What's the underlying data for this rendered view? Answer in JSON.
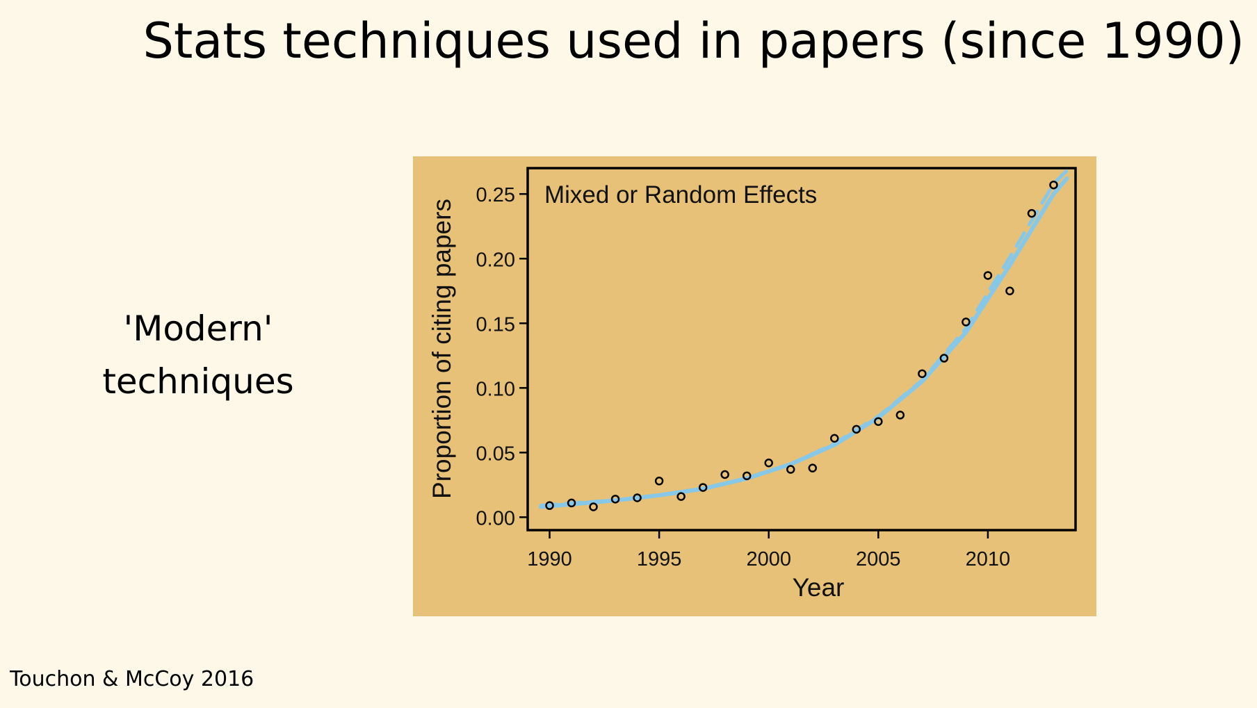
{
  "slide": {
    "title": "Stats techniques used in papers (since 1990)",
    "side_label_line1": "'Modern'",
    "side_label_line2": "techniques",
    "citation": "Touchon & McCoy 2016"
  },
  "colors": {
    "slide_background": "#fef8e8",
    "chart_background": "#e6c177",
    "fit_line": "#87c8e8",
    "points": "#000000"
  },
  "chart_data": {
    "type": "scatter",
    "title": "Mixed or Random Effects",
    "xlabel": "Year",
    "ylabel": "Proportion of citing papers",
    "xlim": [
      1989,
      2014
    ],
    "ylim": [
      -0.01,
      0.27
    ],
    "xticks": [
      1990,
      1995,
      2000,
      2005,
      2010
    ],
    "xtick_labels": [
      "1990",
      "1995",
      "2000",
      "2005",
      "2010"
    ],
    "yticks": [
      0.0,
      0.05,
      0.1,
      0.15,
      0.2,
      0.25
    ],
    "ytick_labels": [
      "0.00",
      "0.05",
      "0.10",
      "0.15",
      "0.20",
      "0.25"
    ],
    "grid": false,
    "series": [
      {
        "type": "scatter",
        "x": [
          1990,
          1991,
          1992,
          1993,
          1994,
          1995,
          1996,
          1997,
          1998,
          1999,
          2000,
          2001,
          2002,
          2003,
          2004,
          2005,
          2006,
          2007,
          2008,
          2009,
          2010,
          2011,
          2012,
          2013
        ],
        "y": [
          0.009,
          0.011,
          0.008,
          0.014,
          0.015,
          0.028,
          0.016,
          0.023,
          0.033,
          0.032,
          0.042,
          0.037,
          0.038,
          0.061,
          0.068,
          0.074,
          0.079,
          0.111,
          0.123,
          0.151,
          0.187,
          0.175,
          0.235,
          0.257
        ]
      },
      {
        "type": "line",
        "style": "solid",
        "x": [
          1989.6,
          1991,
          1993,
          1995,
          1997,
          1999,
          2001,
          2003,
          2005,
          2007,
          2009,
          2011,
          2013,
          2013.6
        ],
        "y": [
          0.008,
          0.01,
          0.013,
          0.017,
          0.022,
          0.03,
          0.041,
          0.056,
          0.077,
          0.105,
          0.143,
          0.195,
          0.25,
          0.262
        ]
      },
      {
        "type": "line",
        "style": "dashed",
        "x": [
          1989.6,
          1991,
          1993,
          1995,
          1997,
          1999,
          2001,
          2003,
          2005,
          2007,
          2009,
          2011,
          2013,
          2013.6
        ],
        "y": [
          0.009,
          0.011,
          0.013,
          0.017,
          0.022,
          0.03,
          0.041,
          0.057,
          0.078,
          0.106,
          0.146,
          0.201,
          0.258,
          0.268
        ]
      }
    ]
  }
}
